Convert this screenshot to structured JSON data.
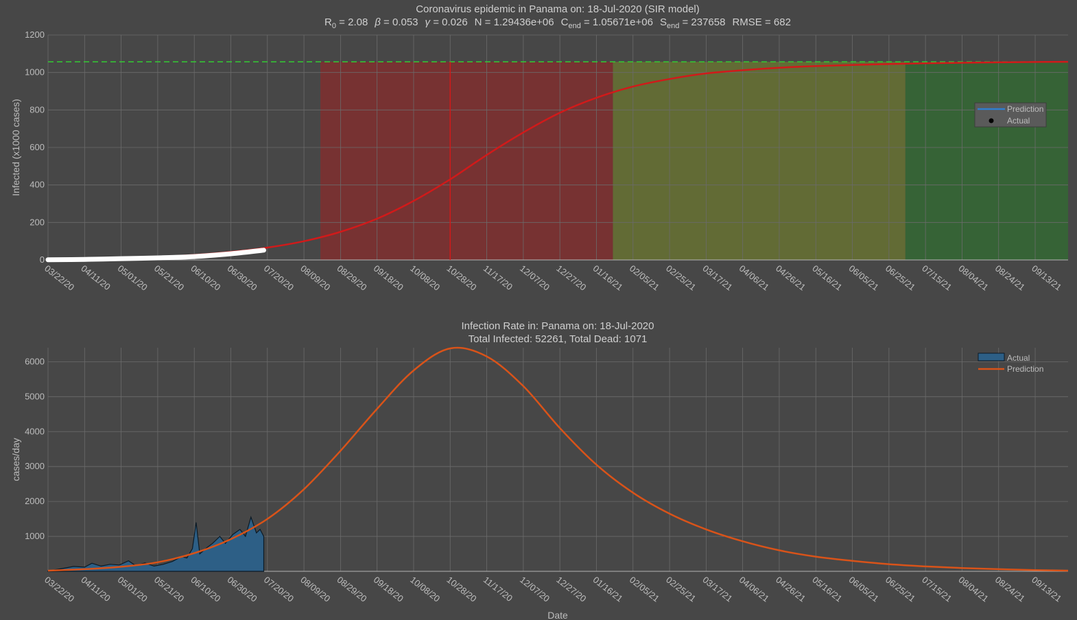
{
  "chart_data": [
    {
      "type": "line",
      "title": "Coronavirus epidemic in Panama on: 18-Jul-2020 (SIR model)",
      "params_line": [
        {
          "sym": "R",
          "sub": "0",
          "val": "2.08"
        },
        {
          "sym": "β",
          "sub": "",
          "val": "0.053",
          "greek": true
        },
        {
          "sym": "γ",
          "sub": "",
          "val": "0.026",
          "greek": true
        },
        {
          "sym": "N",
          "sub": "",
          "val": "1.29436e+06"
        },
        {
          "sym": "C",
          "sub": "end",
          "val": "1.05671e+06"
        },
        {
          "sym": "S",
          "sub": "end",
          "val": "237658"
        },
        {
          "sym": "RMSE",
          "sub": "",
          "val": "682"
        }
      ],
      "ylabel": "Infected (x1000 cases)",
      "xlabel": "",
      "ylim": [
        0,
        1200
      ],
      "yticks": [
        0,
        200,
        400,
        600,
        800,
        1000,
        1200
      ],
      "xticks": [
        "03/22/20",
        "04/11/20",
        "05/01/20",
        "05/21/20",
        "06/10/20",
        "06/30/20",
        "07/20/20",
        "08/09/20",
        "08/29/20",
        "09/18/20",
        "10/08/20",
        "10/28/20",
        "11/17/20",
        "12/07/20",
        "12/27/20",
        "01/16/21",
        "02/05/21",
        "02/25/21",
        "03/17/21",
        "04/06/21",
        "04/26/21",
        "05/16/21",
        "06/05/21",
        "06/25/21",
        "07/15/21",
        "08/04/21",
        "08/24/21",
        "09/13/21"
      ],
      "asymptote": 1057,
      "peak_date": "10/28/20",
      "phases": [
        {
          "start": "08/18/20",
          "end": "01/25/21",
          "color": "#8c2a2a"
        },
        {
          "start": "01/25/21",
          "end": "07/04/21",
          "color": "#6e7a2e"
        },
        {
          "start": "07/04/21",
          "end": "10/01/21",
          "color": "#2f6f2f"
        }
      ],
      "series": [
        {
          "name": "Prediction",
          "color": "#d11a1a",
          "points": [
            [
              "03/22/20",
              1
            ],
            [
              "04/11/20",
              4
            ],
            [
              "05/01/20",
              9
            ],
            [
              "05/21/20",
              16
            ],
            [
              "06/10/20",
              27
            ],
            [
              "06/30/20",
              43
            ],
            [
              "07/20/20",
              66
            ],
            [
              "08/09/20",
              100
            ],
            [
              "08/29/20",
              150
            ],
            [
              "09/18/20",
              220
            ],
            [
              "10/08/20",
              315
            ],
            [
              "10/28/20",
              430
            ],
            [
              "11/17/20",
              560
            ],
            [
              "12/07/20",
              680
            ],
            [
              "12/27/20",
              785
            ],
            [
              "01/16/21",
              865
            ],
            [
              "02/05/21",
              925
            ],
            [
              "02/25/21",
              965
            ],
            [
              "03/17/21",
              995
            ],
            [
              "04/06/21",
              1012
            ],
            [
              "04/26/21",
              1025
            ],
            [
              "05/16/21",
              1034
            ],
            [
              "06/05/21",
              1040
            ],
            [
              "06/25/21",
              1045
            ],
            [
              "07/15/21",
              1049
            ],
            [
              "08/04/21",
              1052
            ],
            [
              "08/24/21",
              1054
            ],
            [
              "09/13/21",
              1056
            ],
            [
              "10/01/21",
              1057
            ]
          ]
        },
        {
          "name": "Actual",
          "color": "#ffffff",
          "points": [
            [
              "03/22/20",
              1
            ],
            [
              "04/11/20",
              3
            ],
            [
              "05/01/20",
              7
            ],
            [
              "05/21/20",
              11
            ],
            [
              "06/10/20",
              18
            ],
            [
              "06/30/20",
              33
            ],
            [
              "07/18/20",
              52
            ]
          ]
        }
      ],
      "legend": {
        "position": "right",
        "entries": [
          {
            "name": "Prediction",
            "color": "#2f7fd0"
          },
          {
            "name": "Actual",
            "color": "#000000"
          }
        ]
      }
    },
    {
      "type": "area",
      "title": "Infection Rate in: Panama on: 18-Jul-2020",
      "subtitle": "Total Infected: 52261, Total Dead: 1071",
      "ylabel": "cases/day",
      "xlabel": "Date",
      "ylim": [
        0,
        6400
      ],
      "yticks": [
        1000,
        2000,
        3000,
        4000,
        5000,
        6000
      ],
      "xticks": [
        "03/22/20",
        "04/11/20",
        "05/01/20",
        "05/21/20",
        "06/10/20",
        "06/30/20",
        "07/20/20",
        "08/09/20",
        "08/29/20",
        "09/18/20",
        "10/08/20",
        "10/28/20",
        "11/17/20",
        "12/07/20",
        "12/27/20",
        "01/16/21",
        "02/05/21",
        "02/25/21",
        "03/17/21",
        "04/06/21",
        "04/26/21",
        "05/16/21",
        "06/05/21",
        "06/25/21",
        "07/15/21",
        "08/04/21",
        "08/24/21",
        "09/13/21"
      ],
      "series": [
        {
          "name": "Actual",
          "color": "#2d5f86",
          "points": [
            [
              "03/22/20",
              10
            ],
            [
              "03/30/20",
              80
            ],
            [
              "04/05/20",
              140
            ],
            [
              "04/11/20",
              120
            ],
            [
              "04/15/20",
              230
            ],
            [
              "04/20/20",
              150
            ],
            [
              "04/25/20",
              200
            ],
            [
              "04/30/20",
              180
            ],
            [
              "05/05/20",
              300
            ],
            [
              "05/09/20",
              160
            ],
            [
              "05/14/20",
              240
            ],
            [
              "05/19/20",
              150
            ],
            [
              "05/24/20",
              200
            ],
            [
              "05/29/20",
              280
            ],
            [
              "06/03/20",
              420
            ],
            [
              "06/06/20",
              380
            ],
            [
              "06/09/20",
              650
            ],
            [
              "06/11/20",
              1400
            ],
            [
              "06/13/20",
              500
            ],
            [
              "06/17/20",
              680
            ],
            [
              "06/20/20",
              800
            ],
            [
              "06/24/20",
              1000
            ],
            [
              "06/27/20",
              800
            ],
            [
              "07/01/20",
              1050
            ],
            [
              "07/05/20",
              1200
            ],
            [
              "07/08/20",
              1000
            ],
            [
              "07/11/20",
              1550
            ],
            [
              "07/14/20",
              1100
            ],
            [
              "07/16/20",
              1200
            ],
            [
              "07/18/20",
              1000
            ]
          ]
        },
        {
          "name": "Prediction",
          "color": "#d95319",
          "points": [
            [
              "03/22/20",
              20
            ],
            [
              "04/11/20",
              60
            ],
            [
              "05/01/20",
              130
            ],
            [
              "05/21/20",
              260
            ],
            [
              "06/10/20",
              520
            ],
            [
              "06/30/20",
              920
            ],
            [
              "07/20/20",
              1500
            ],
            [
              "08/09/20",
              2350
            ],
            [
              "08/29/20",
              3450
            ],
            [
              "09/18/20",
              4650
            ],
            [
              "10/08/20",
              5750
            ],
            [
              "10/28/20",
              6380
            ],
            [
              "11/17/20",
              6150
            ],
            [
              "12/07/20",
              5300
            ],
            [
              "12/27/20",
              4100
            ],
            [
              "01/16/21",
              3050
            ],
            [
              "02/05/21",
              2250
            ],
            [
              "02/25/21",
              1650
            ],
            [
              "03/17/21",
              1200
            ],
            [
              "04/06/21",
              860
            ],
            [
              "04/26/21",
              600
            ],
            [
              "05/16/21",
              420
            ],
            [
              "06/05/21",
              300
            ],
            [
              "06/25/21",
              205
            ],
            [
              "07/15/21",
              140
            ],
            [
              "08/04/21",
              95
            ],
            [
              "08/24/21",
              60
            ],
            [
              "09/13/21",
              35
            ],
            [
              "10/01/21",
              20
            ]
          ]
        }
      ],
      "legend": {
        "position": "top-right",
        "entries": [
          {
            "name": "Actual",
            "color": "#2d5f86"
          },
          {
            "name": "Prediction",
            "color": "#d95319"
          }
        ]
      }
    }
  ]
}
